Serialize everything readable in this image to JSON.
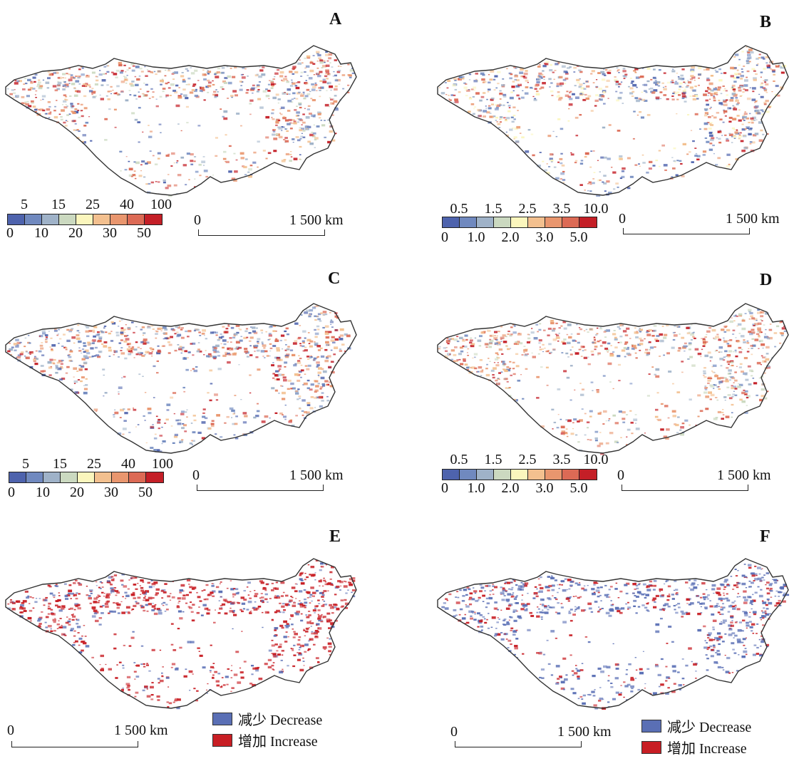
{
  "panels": [
    {
      "label": "A",
      "legend": "continuous_a"
    },
    {
      "label": "B",
      "legend": "continuous_b"
    },
    {
      "label": "C",
      "legend": "continuous_a"
    },
    {
      "label": "D",
      "legend": "continuous_b"
    },
    {
      "label": "E",
      "legend": "change"
    },
    {
      "label": "F",
      "legend": "change"
    }
  ],
  "legends": {
    "continuous_a": {
      "upper_ticks": [
        "5",
        "15",
        "25",
        "40",
        "100"
      ],
      "lower_ticks": [
        "0",
        "10",
        "20",
        "30",
        "50"
      ]
    },
    "continuous_b": {
      "upper_ticks": [
        "0.5",
        "1.5",
        "2.5",
        "3.5",
        "10.0"
      ],
      "lower_ticks": [
        "0",
        "1.0",
        "2.0",
        "3.0",
        "5.0"
      ]
    },
    "change": {
      "decrease_label": "减少 Decrease",
      "increase_label": "增加 Increase",
      "decrease_color": "#5a6fb5",
      "increase_color": "#c81e24"
    }
  },
  "legend_colors": [
    "#4e63ad",
    "#7089bf",
    "#9fb2c8",
    "#cbd9c0",
    "#fbf6bd",
    "#f3c08f",
    "#e9966e",
    "#dc6a55",
    "#c41f27"
  ],
  "scalebar": {
    "zero": "0",
    "distance": "1 500 km"
  }
}
